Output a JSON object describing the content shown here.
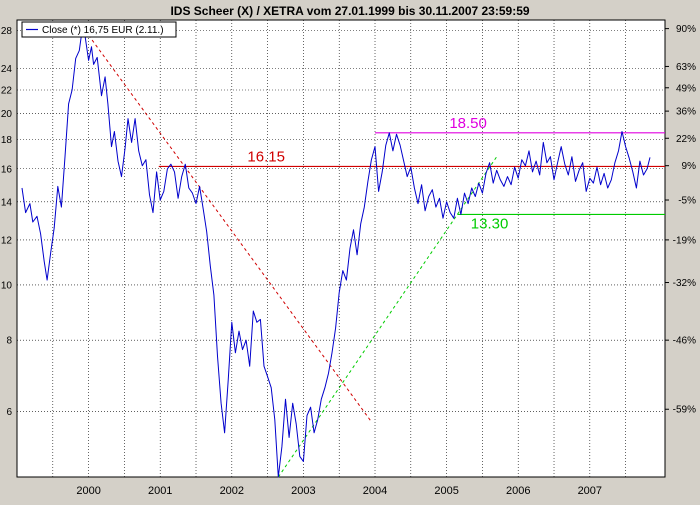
{
  "chart_data": {
    "type": "line",
    "title": "IDS Scheer (X) / XETRA vom 27.01.1999 bis 30.11.2007 23:59:59",
    "legend": {
      "label": "Close (*) 16,75 EUR (2.11.)",
      "placement": "top-left"
    },
    "y_scale": "log",
    "ylim": [
      4.6,
      29.2
    ],
    "xlim": [
      1999.0,
      2008.05
    ],
    "grid": true,
    "x_ticks": [
      "2000",
      "2001",
      "2002",
      "2003",
      "2004",
      "2005",
      "2006",
      "2007"
    ],
    "y_ticks_left": [
      28,
      24,
      22,
      20,
      18,
      16,
      14,
      12,
      10,
      8,
      6
    ],
    "y_ticks_right": [
      {
        "label": "90%",
        "value": 28.2
      },
      {
        "label": "63%",
        "value": 24.2
      },
      {
        "label": "49%",
        "value": 22.2
      },
      {
        "label": "36%",
        "value": 20.2
      },
      {
        "label": "22%",
        "value": 18.1
      },
      {
        "label": "9%",
        "value": 16.2
      },
      {
        "label": "-5%",
        "value": 14.1
      },
      {
        "label": "-19%",
        "value": 12.0
      },
      {
        "label": "-32%",
        "value": 10.1
      },
      {
        "label": "-46%",
        "value": 8.0
      },
      {
        "label": "-59%",
        "value": 6.05
      }
    ],
    "series": [
      {
        "color": "#0000cc",
        "x": [
          1999.07,
          1999.12,
          1999.18,
          1999.22,
          1999.28,
          1999.33,
          1999.38,
          1999.42,
          1999.47,
          1999.52,
          1999.57,
          1999.62,
          1999.67,
          1999.72,
          1999.77,
          1999.82,
          1999.87,
          1999.91,
          1999.95,
          2000.0,
          2000.04,
          2000.07,
          2000.12,
          2000.18,
          2000.23,
          2000.27,
          2000.32,
          2000.36,
          2000.41,
          2000.46,
          2000.51,
          2000.55,
          2000.6,
          2000.65,
          2000.7,
          2000.75,
          2000.8,
          2000.85,
          2000.9,
          2000.95,
          2001.0,
          2001.05,
          2001.1,
          2001.15,
          2001.2,
          2001.25,
          2001.3,
          2001.35,
          2001.4,
          2001.45,
          2001.5,
          2001.55,
          2001.6,
          2001.65,
          2001.7,
          2001.75,
          2001.8,
          2001.85,
          2001.9,
          2001.95,
          2002.0,
          2002.05,
          2002.1,
          2002.15,
          2002.2,
          2002.25,
          2002.3,
          2002.35,
          2002.4,
          2002.45,
          2002.5,
          2002.55,
          2002.6,
          2002.65,
          2002.7,
          2002.75,
          2002.8,
          2002.85,
          2002.9,
          2002.95,
          2003.0,
          2003.05,
          2003.1,
          2003.15,
          2003.2,
          2003.25,
          2003.3,
          2003.35,
          2003.4,
          2003.45,
          2003.5,
          2003.55,
          2003.6,
          2003.65,
          2003.7,
          2003.75,
          2003.8,
          2003.85,
          2003.9,
          2003.95,
          2004.0,
          2004.05,
          2004.1,
          2004.15,
          2004.2,
          2004.25,
          2004.3,
          2004.35,
          2004.4,
          2004.45,
          2004.5,
          2004.55,
          2004.6,
          2004.65,
          2004.7,
          2004.75,
          2004.8,
          2004.85,
          2004.9,
          2004.95,
          2005.0,
          2005.05,
          2005.1,
          2005.15,
          2005.2,
          2005.25,
          2005.3,
          2005.35,
          2005.4,
          2005.45,
          2005.5,
          2005.55,
          2005.6,
          2005.65,
          2005.7,
          2005.75,
          2005.8,
          2005.85,
          2005.9,
          2005.95,
          2006.0,
          2006.05,
          2006.1,
          2006.15,
          2006.2,
          2006.25,
          2006.3,
          2006.35,
          2006.4,
          2006.45,
          2006.5,
          2006.55,
          2006.6,
          2006.65,
          2006.7,
          2006.75,
          2006.8,
          2006.85,
          2006.9,
          2006.95,
          2007.0,
          2007.05,
          2007.1,
          2007.15,
          2007.2,
          2007.25,
          2007.3,
          2007.35,
          2007.4,
          2007.45,
          2007.5,
          2007.55,
          2007.6,
          2007.65,
          2007.7,
          2007.75,
          2007.8,
          2007.84
        ],
        "values": [
          14.8,
          13.4,
          13.9,
          12.9,
          13.2,
          12.3,
          11.0,
          10.2,
          11.4,
          12.6,
          14.9,
          13.7,
          16.8,
          20.8,
          22.0,
          25.0,
          25.8,
          28.1,
          27.4,
          24.8,
          26.2,
          24.4,
          25.1,
          21.5,
          23.2,
          20.8,
          17.5,
          18.6,
          16.5,
          15.5,
          17.4,
          19.6,
          17.8,
          19.6,
          17.2,
          16.2,
          16.6,
          14.4,
          13.4,
          15.8,
          14.1,
          14.6,
          16.0,
          16.3,
          15.8,
          14.2,
          15.5,
          16.3,
          14.8,
          14.5,
          13.9,
          14.9,
          13.6,
          12.4,
          10.8,
          9.6,
          7.5,
          6.2,
          5.5,
          6.8,
          8.6,
          7.6,
          8.3,
          7.7,
          8.0,
          7.2,
          9.0,
          8.6,
          8.7,
          7.2,
          6.9,
          6.6,
          5.8,
          4.6,
          5.2,
          6.3,
          5.4,
          6.2,
          5.7,
          5.0,
          4.9,
          5.9,
          6.1,
          5.5,
          5.8,
          6.3,
          6.6,
          7.0,
          7.6,
          8.4,
          9.7,
          10.6,
          10.2,
          11.6,
          12.5,
          11.3,
          12.8,
          13.7,
          15.2,
          16.6,
          17.5,
          14.6,
          15.8,
          17.6,
          18.5,
          17.2,
          18.4,
          17.6,
          16.5,
          15.5,
          16.1,
          14.8,
          13.9,
          15.0,
          13.5,
          14.3,
          14.7,
          13.7,
          14.2,
          13.1,
          14.0,
          13.4,
          13.1,
          14.2,
          13.3,
          14.5,
          13.9,
          14.8,
          14.3,
          15.1,
          14.5,
          15.7,
          16.4,
          15.1,
          15.9,
          15.3,
          14.9,
          15.5,
          15.0,
          16.1,
          15.4,
          16.6,
          16.2,
          17.2,
          15.8,
          16.5,
          15.6,
          17.8,
          16.4,
          16.8,
          15.3,
          16.4,
          17.5,
          16.3,
          15.6,
          16.8,
          15.2,
          15.9,
          16.4,
          14.6,
          15.4,
          15.1,
          16.1,
          15.0,
          15.7,
          14.8,
          15.3,
          16.4,
          17.2,
          18.6,
          17.5,
          16.7,
          15.8,
          14.8,
          16.5,
          15.6,
          16.0,
          16.75
        ]
      }
    ],
    "annotations": [
      {
        "label": "18.50",
        "value": 18.5,
        "x_start": 2004.0,
        "color": "#e000e0"
      },
      {
        "label": "16.15",
        "value": 16.15,
        "x_start": 2000.98,
        "color": "#d00000"
      },
      {
        "label": "13.30",
        "value": 13.3,
        "x_start": 2005.15,
        "color": "#00cc00"
      }
    ],
    "trendlines": [
      {
        "style": "dashed",
        "color": "#d00000",
        "from": [
          1999.95,
          28.0
        ],
        "to": [
          2003.95,
          5.75
        ]
      },
      {
        "style": "dashed",
        "color": "#00cc00",
        "from": [
          2002.65,
          4.6
        ],
        "to": [
          2005.7,
          16.8
        ]
      }
    ]
  }
}
